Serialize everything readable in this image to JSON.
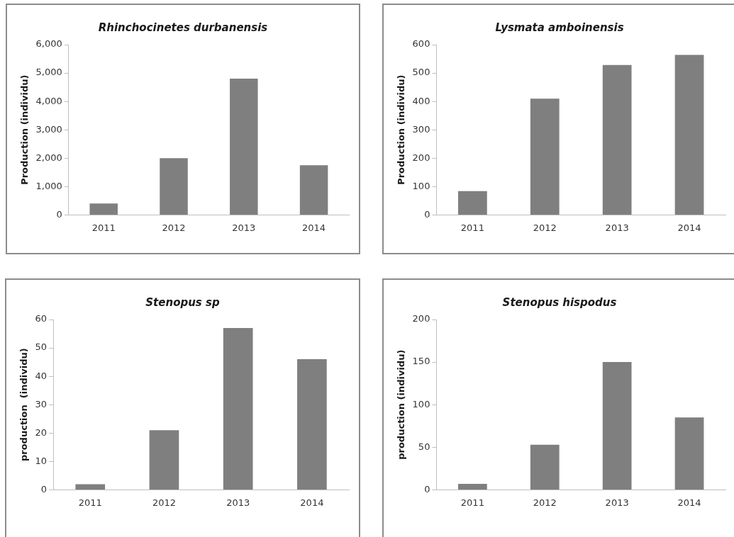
{
  "chart_data": [
    {
      "type": "bar",
      "title": "Rhinchocinetes durbanensis",
      "ylabel": "Production (individu)",
      "categories": [
        "2011",
        "2012",
        "2013",
        "2014"
      ],
      "values": [
        400,
        2000,
        4800,
        1750
      ],
      "color": "#7f7f7f",
      "ylim": [
        0,
        6000
      ],
      "yticks": [
        {
          "value": 0,
          "label": "0"
        },
        {
          "value": 1000,
          "label": "1,000"
        },
        {
          "value": 2000,
          "label": "2,000"
        },
        {
          "value": 3000,
          "label": "3,000"
        },
        {
          "value": 4000,
          "label": "4,000"
        },
        {
          "value": 5000,
          "label": "5,000"
        },
        {
          "value": 6000,
          "label": "6,000"
        }
      ],
      "grid": false,
      "legend": false
    },
    {
      "type": "bar",
      "title": "Lysmata amboinensis",
      "ylabel": "Production (individu)",
      "categories": [
        "2011",
        "2012",
        "2013",
        "2014"
      ],
      "values": [
        84,
        410,
        528,
        564
      ],
      "color": "#7f7f7f",
      "ylim": [
        0,
        600
      ],
      "yticks": [
        0,
        100,
        200,
        300,
        400,
        500,
        600
      ],
      "grid": false,
      "legend": false
    },
    {
      "type": "bar",
      "title": "Stenopus sp",
      "ylabel": "production  (individu)",
      "categories": [
        "2011",
        "2012",
        "2013",
        "2014"
      ],
      "values": [
        2,
        21,
        57,
        46
      ],
      "color": "#7f7f7f",
      "ylim": [
        0,
        60
      ],
      "yticks": [
        0,
        10,
        20,
        30,
        40,
        50,
        60
      ],
      "grid": false,
      "legend": false
    },
    {
      "type": "bar",
      "title": "Stenopus hispodus",
      "ylabel": "production (individu)",
      "categories": [
        "2011",
        "2012",
        "2013",
        "2014"
      ],
      "values": [
        7,
        53,
        150,
        85
      ],
      "color": "#7f7f7f",
      "ylim": [
        0,
        200
      ],
      "yticks": [
        0,
        50,
        100,
        150,
        200
      ],
      "grid": false,
      "legend": false
    }
  ]
}
